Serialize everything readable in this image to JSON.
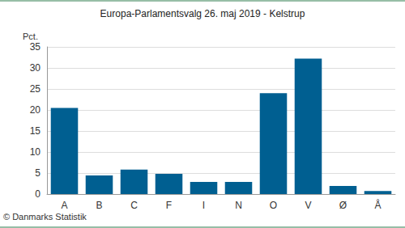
{
  "chart_data": {
    "type": "bar",
    "title": "Europa-Parlamentsvalg 26. maj 2019 - Kelstrup",
    "y_label": "Pct.",
    "annotations": [
      "© Danmarks Statistik"
    ],
    "categories": [
      "A",
      "B",
      "C",
      "F",
      "I",
      "N",
      "O",
      "V",
      "Ø",
      "Å"
    ],
    "values": [
      20.5,
      4.4,
      5.8,
      4.8,
      2.9,
      2.9,
      24.0,
      32.2,
      1.9,
      0.7
    ],
    "color": "#005f91",
    "ylim": [
      0,
      35
    ],
    "yticks": [
      0,
      5,
      10,
      15,
      20,
      25,
      30,
      35
    ],
    "grid": true
  }
}
